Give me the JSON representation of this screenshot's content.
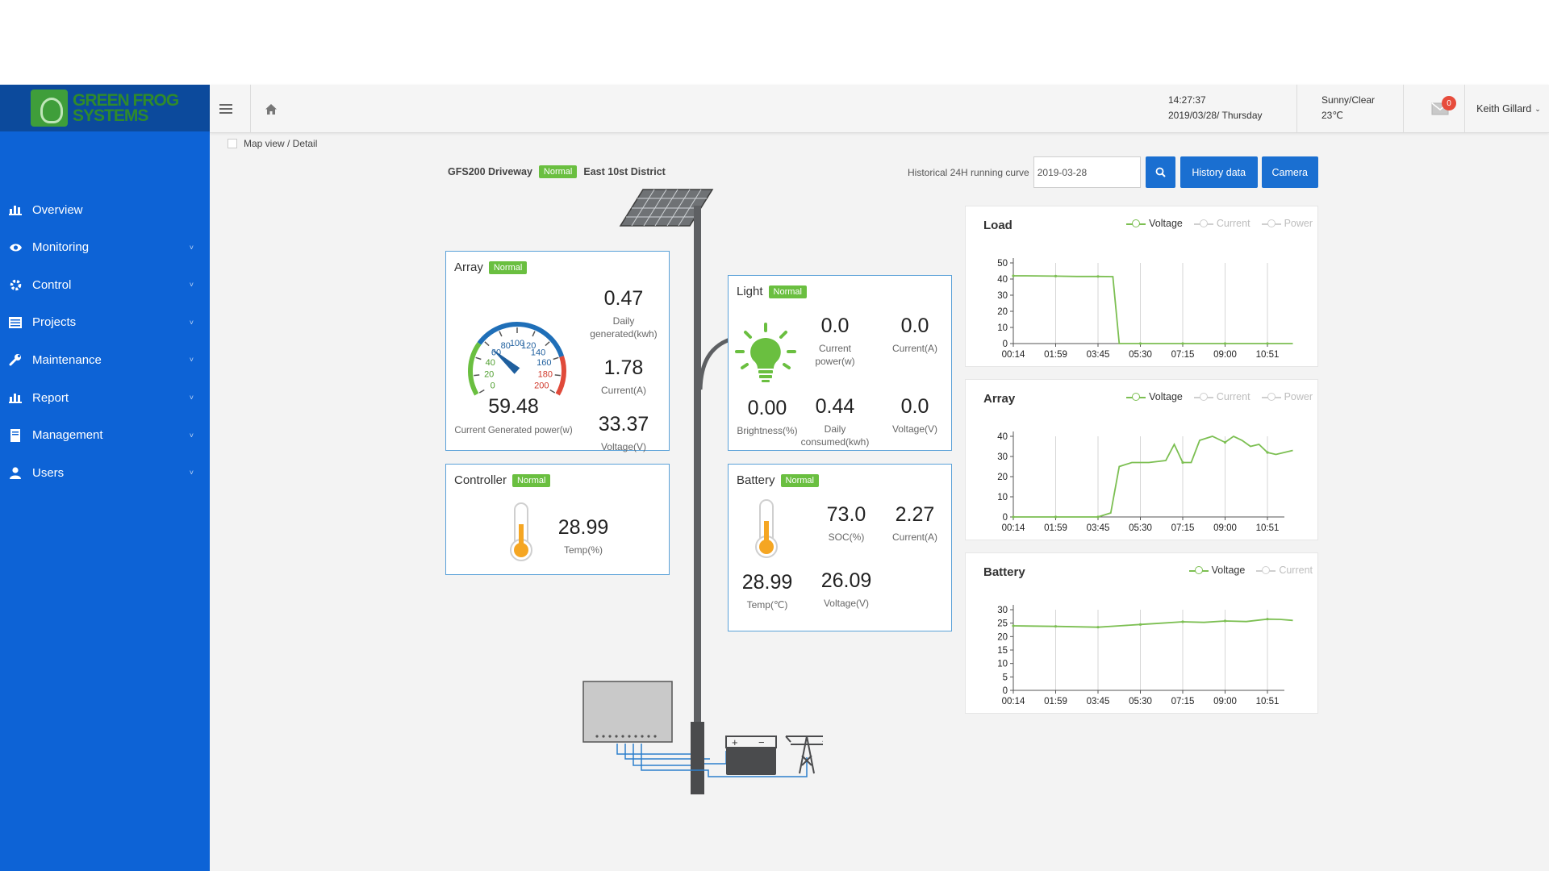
{
  "brand": {
    "line1": "GREEN FROG",
    "line2": "SYSTEMS"
  },
  "nav": [
    {
      "label": "Overview",
      "icon": "bar-chart-icon"
    },
    {
      "label": "Monitoring",
      "icon": "eye-icon"
    },
    {
      "label": "Control",
      "icon": "gear-icon"
    },
    {
      "label": "Projects",
      "icon": "list-icon"
    },
    {
      "label": "Maintenance",
      "icon": "wrench-icon"
    },
    {
      "label": "Report",
      "icon": "bar-chart-icon"
    },
    {
      "label": "Management",
      "icon": "book-icon"
    },
    {
      "label": "Users",
      "icon": "user-icon"
    }
  ],
  "topbar": {
    "time": "14:27:37",
    "date": "2019/03/28/ Thursday",
    "weather": "Sunny/Clear",
    "temp": "23℃",
    "mail_count": "0",
    "user": "Keith Gillard"
  },
  "breadcrumb": "Map view / Detail",
  "station": {
    "name": "GFS200 Driveway",
    "status": "Normal",
    "district": "East 10st District"
  },
  "history": {
    "label": "Historical 24H running curve",
    "date": "2019-03-28",
    "history_btn": "History data",
    "camera_btn": "Camera"
  },
  "array": {
    "title": "Array",
    "status": "Normal",
    "daily_generated": "0.47",
    "daily_generated_label": "Daily generated(kwh)",
    "current": "1.78",
    "current_label": "Current(A)",
    "voltage": "33.37",
    "voltage_label": "Voltage(V)",
    "power": "59.48",
    "power_label": "Current Generated power(w)",
    "gauge": {
      "value": 59.48,
      "max": 200,
      "ticks": [
        "0",
        "20",
        "40",
        "60",
        "80",
        "100",
        "120",
        "140",
        "160",
        "180",
        "200"
      ]
    }
  },
  "light": {
    "title": "Light",
    "status": "Normal",
    "current_power": "0.0",
    "current_power_label": "Current power(w)",
    "current": "0.0",
    "current_label": "Current(A)",
    "brightness": "0.00",
    "brightness_label": "Brightness(%)",
    "daily_consumed": "0.44",
    "daily_consumed_label": "Daily consumed(kwh)",
    "voltage": "0.0",
    "voltage_label": "Voltage(V)"
  },
  "controller": {
    "title": "Controller",
    "status": "Normal",
    "temp": "28.99",
    "temp_label": "Temp(%)"
  },
  "battery": {
    "title": "Battery",
    "status": "Normal",
    "soc": "73.0",
    "soc_label": "SOC(%)",
    "current": "2.27",
    "current_label": "Current(A)",
    "temp": "28.99",
    "temp_label": "Temp(℃)",
    "voltage": "26.09",
    "voltage_label": "Voltage(V)"
  },
  "colors": {
    "sidebar": "#0d63d6",
    "logo_bg": "#0c4a9c",
    "accent": "#1a6fd1",
    "normal": "#6abf40",
    "card_border": "#5aa1d8",
    "series": "#7cbf52"
  },
  "chart_data": [
    {
      "type": "line",
      "title": "Load",
      "legend": [
        "Voltage",
        "Current",
        "Power"
      ],
      "x": [
        "00:14",
        "01:59",
        "03:45",
        "05:30",
        "07:15",
        "09:00",
        "10:51"
      ],
      "ylim": [
        0,
        50
      ],
      "yticks": [
        0,
        10,
        20,
        30,
        40,
        50
      ],
      "series": [
        {
          "name": "Voltage",
          "points": [
            [
              0,
              42
            ],
            [
              0.3,
              42
            ],
            [
              1,
              41.8
            ],
            [
              1.5,
              41.6
            ],
            [
              2,
              41.6
            ],
            [
              2.35,
              41.5
            ],
            [
              2.5,
              0
            ],
            [
              3,
              0
            ],
            [
              4,
              0
            ],
            [
              5,
              0
            ],
            [
              6,
              0
            ],
            [
              6.6,
              0
            ]
          ]
        }
      ]
    },
    {
      "type": "line",
      "title": "Array",
      "legend": [
        "Voltage",
        "Current",
        "Power"
      ],
      "x": [
        "00:14",
        "01:59",
        "03:45",
        "05:30",
        "07:15",
        "09:00",
        "10:51"
      ],
      "ylim": [
        0,
        40
      ],
      "yticks": [
        0,
        10,
        20,
        30,
        40
      ],
      "series": [
        {
          "name": "Voltage",
          "points": [
            [
              0,
              0
            ],
            [
              1,
              0
            ],
            [
              2,
              0
            ],
            [
              2.3,
              2
            ],
            [
              2.5,
              25
            ],
            [
              2.8,
              27
            ],
            [
              3.2,
              27
            ],
            [
              3.6,
              28
            ],
            [
              3.8,
              36
            ],
            [
              4,
              27
            ],
            [
              4.2,
              27
            ],
            [
              4.4,
              38
            ],
            [
              4.7,
              40
            ],
            [
              5,
              37
            ],
            [
              5.2,
              40
            ],
            [
              5.4,
              38
            ],
            [
              5.6,
              35
            ],
            [
              5.8,
              36
            ],
            [
              6,
              32
            ],
            [
              6.2,
              31
            ],
            [
              6.4,
              32
            ],
            [
              6.6,
              33
            ]
          ]
        }
      ]
    },
    {
      "type": "line",
      "title": "Battery",
      "legend": [
        "Voltage",
        "Current"
      ],
      "x": [
        "00:14",
        "01:59",
        "03:45",
        "05:30",
        "07:15",
        "09:00",
        "10:51"
      ],
      "ylim": [
        0,
        30
      ],
      "yticks": [
        0,
        5,
        10,
        15,
        20,
        25,
        30
      ],
      "series": [
        {
          "name": "Voltage",
          "points": [
            [
              0,
              24
            ],
            [
              1,
              23.8
            ],
            [
              2,
              23.5
            ],
            [
              2.5,
              24
            ],
            [
              3,
              24.5
            ],
            [
              3.5,
              25
            ],
            [
              4,
              25.5
            ],
            [
              4.5,
              25.3
            ],
            [
              5,
              25.8
            ],
            [
              5.5,
              25.6
            ],
            [
              6,
              26.5
            ],
            [
              6.3,
              26.4
            ],
            [
              6.6,
              26
            ]
          ]
        }
      ]
    }
  ]
}
